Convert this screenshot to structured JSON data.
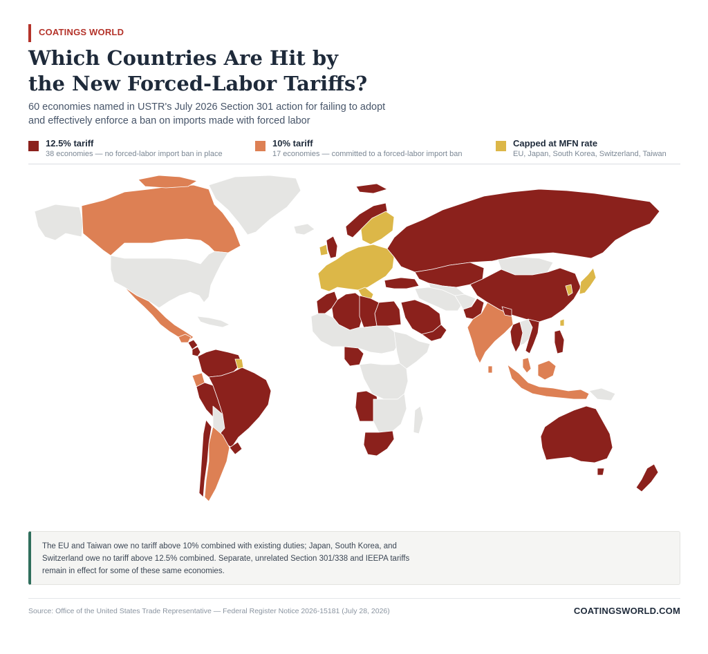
{
  "header": {
    "brand": "COATINGS WORLD",
    "title_line1": "Which Countries Are Hit by",
    "title_line2": "the New Forced-Labor Tariffs?",
    "subtitle_line1": "60 economies named in USTR's July 2026 Section 301 action for failing to adopt",
    "subtitle_line2": "and effectively enforce a ban on imports made with forced labor"
  },
  "legend": [
    {
      "label": "12.5% tariff",
      "description": "38 economies — no forced-labor import ban in place",
      "color": "#8b211c"
    },
    {
      "label": "10% tariff",
      "description": "17 economies — committed to a forced-labor import ban",
      "color": "#dd8054"
    },
    {
      "label": "Capped at MFN rate",
      "description": "EU, Japan, South Korea, Switzerland, Taiwan",
      "color": "#dcb748"
    }
  ],
  "map": {
    "colors": {
      "tariff_12_5": "#8b211c",
      "tariff_10": "#dd8054",
      "capped": "#dcb748",
      "other": "#e5e5e3",
      "ocean": "#ffffff"
    }
  },
  "note": {
    "line1": "The EU and Taiwan owe no tariff above 10% combined with existing duties; Japan, South Korea, and",
    "line2": "Switzerland owe no tariff above 12.5% combined. Separate, unrelated Section 301/338 and IEEPA tariffs",
    "line3": "remain in effect for some of these same economies."
  },
  "footer": {
    "source": "Source: Office of the United States Trade Representative — Federal Register Notice 2026-15181 (July 28, 2026)",
    "site": "COATINGSWORLD.COM"
  }
}
